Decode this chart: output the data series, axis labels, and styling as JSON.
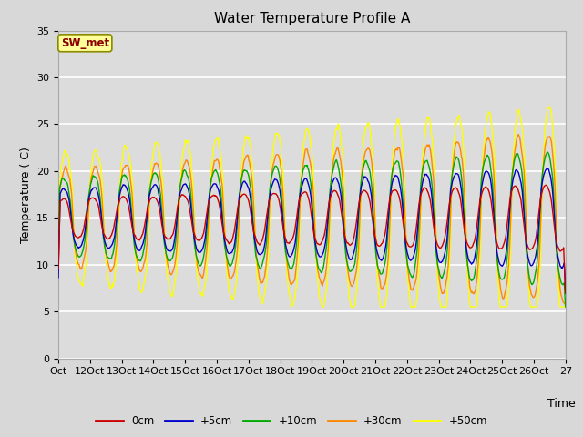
{
  "title": "Water Temperature Profile A",
  "xlabel": "Time",
  "ylabel": "Temperature ( C)",
  "ylim": [
    0,
    35
  ],
  "yticks": [
    0,
    5,
    10,
    15,
    20,
    25,
    30,
    35
  ],
  "x_labels": [
    "Oct",
    "12Oct",
    "13Oct",
    "14Oct",
    "15Oct",
    "16Oct",
    "17Oct",
    "18Oct",
    "19Oct",
    "20Oct",
    "21Oct",
    "22Oct",
    "23Oct",
    "24Oct",
    "25Oct",
    "26Oct",
    "27"
  ],
  "annotation_text": "SW_met",
  "annotation_bg": "#ffff99",
  "annotation_fg": "#8b0000",
  "annotation_border": "#8b8b00",
  "legend_labels": [
    "0cm",
    "+5cm",
    "+10cm",
    "+30cm",
    "+50cm"
  ],
  "legend_colors": [
    "#cc0000",
    "#0000cc",
    "#00aa00",
    "#ff8800",
    "#ffff00"
  ],
  "fig_bg_color": "#d8d8d8",
  "plot_bg_color": "#dcdcdc",
  "grid_color": "#ffffff",
  "tick_fontsize": 8,
  "title_fontsize": 11,
  "ylabel_fontsize": 9,
  "xlabel_fontsize": 9,
  "lw": 1.0,
  "n_points": 800
}
